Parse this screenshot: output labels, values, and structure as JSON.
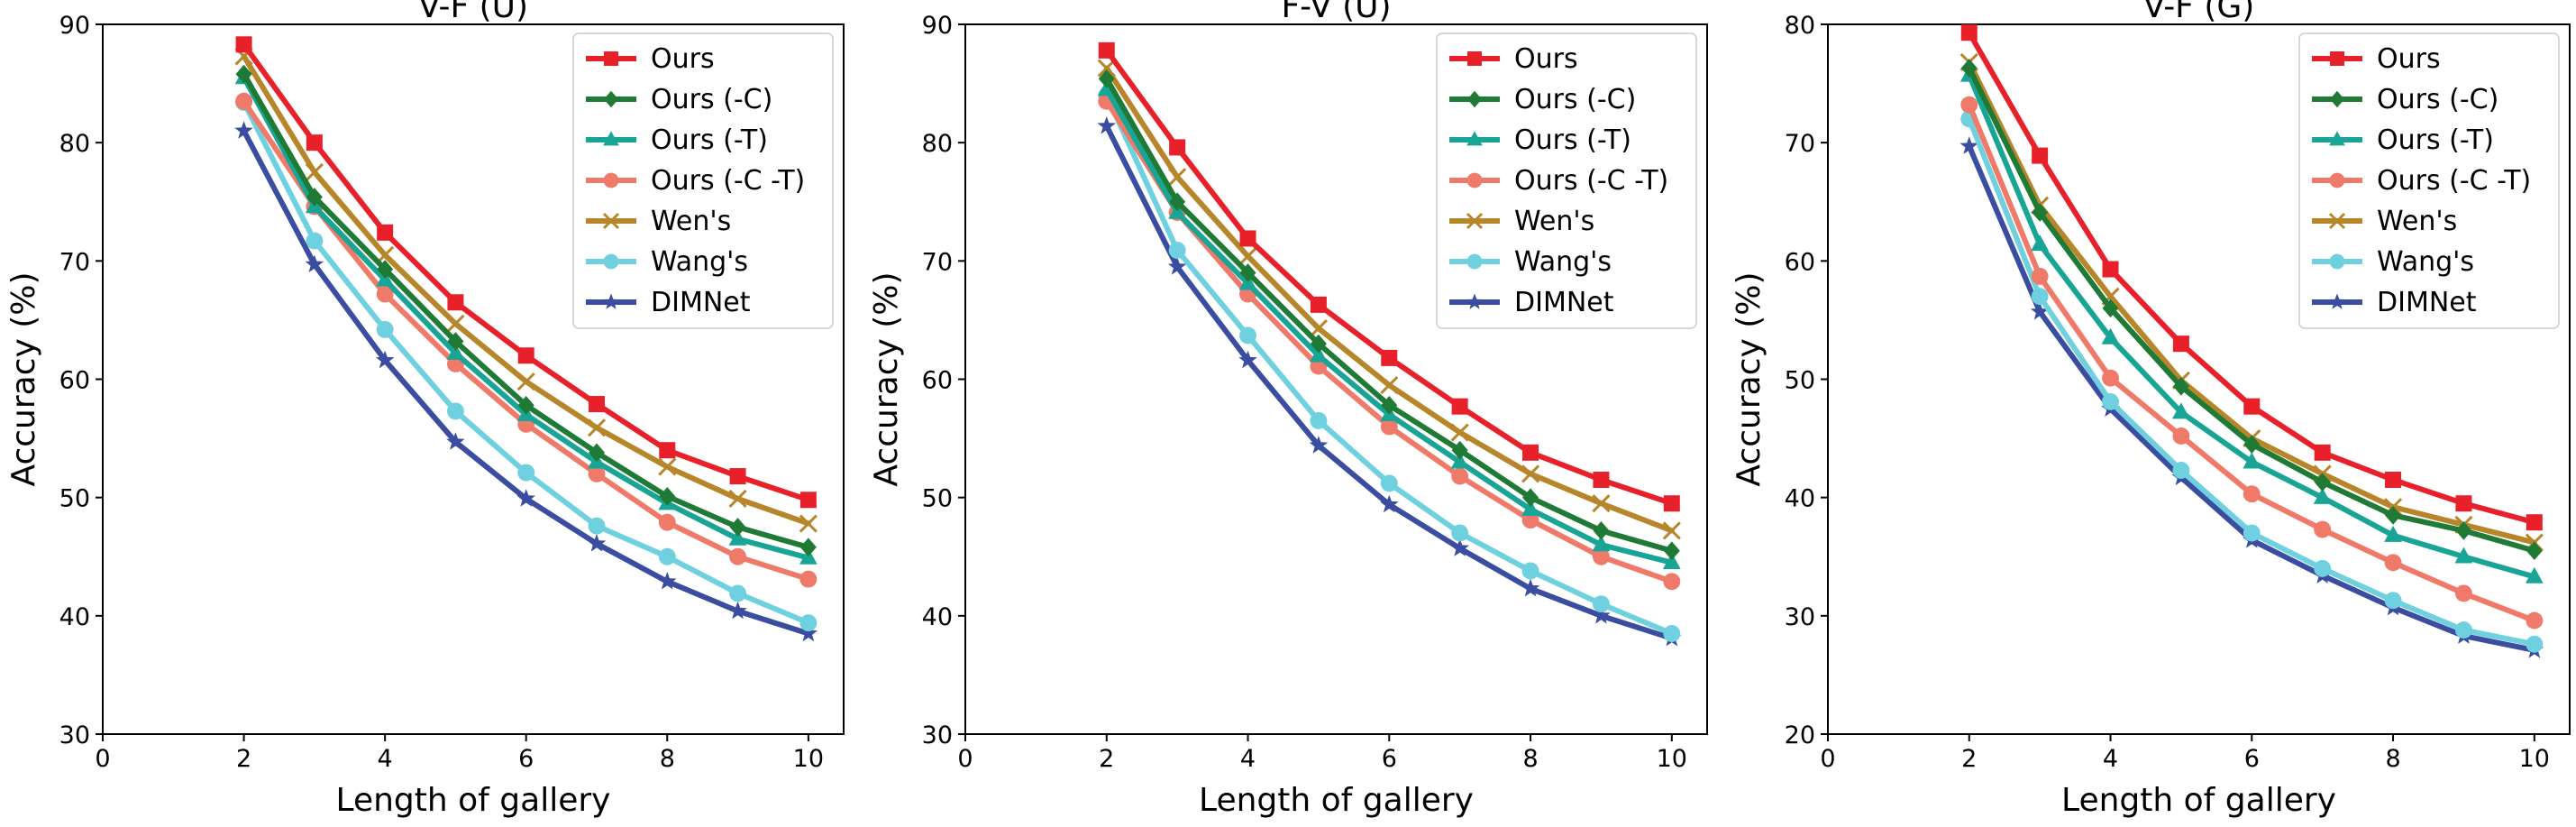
{
  "figure": "Accuracy vs. length of gallery",
  "chart_data": [
    {
      "type": "line",
      "title": "V-F (U)",
      "xlabel": "Length of gallery",
      "ylabel": "Accuracy (%)",
      "xlim": [
        0,
        10.5
      ],
      "ylim": [
        30,
        90
      ],
      "xticks": [
        0,
        2,
        4,
        6,
        8,
        10
      ],
      "yticks": [
        30,
        40,
        50,
        60,
        70,
        80,
        90
      ],
      "legend_position": "top-right",
      "x": [
        2,
        3,
        4,
        5,
        6,
        7,
        8,
        9,
        10
      ],
      "series": [
        {
          "name": "Ours",
          "color": "#e8202a",
          "marker": "square",
          "values": [
            88.3,
            80.0,
            72.4,
            66.5,
            62.0,
            57.9,
            54.0,
            51.8,
            49.8
          ]
        },
        {
          "name": "Ours (-C)",
          "color": "#1e7a35",
          "marker": "diamond",
          "values": [
            85.8,
            75.4,
            69.3,
            63.2,
            57.8,
            53.8,
            50.1,
            47.5,
            45.8
          ]
        },
        {
          "name": "Ours (-T)",
          "color": "#19a596",
          "marker": "triangle",
          "values": [
            85.5,
            74.6,
            68.4,
            62.2,
            57.0,
            53.0,
            49.5,
            46.5,
            44.9
          ]
        },
        {
          "name": "Ours (-C -T)",
          "color": "#ef7a6a",
          "marker": "circle",
          "values": [
            83.5,
            74.6,
            67.2,
            61.3,
            56.2,
            52.0,
            47.9,
            45.0,
            43.1
          ]
        },
        {
          "name": "Wen's",
          "color": "#b8862a",
          "marker": "x",
          "values": [
            87.3,
            77.5,
            70.5,
            64.7,
            59.8,
            55.9,
            52.6,
            49.9,
            47.8
          ]
        },
        {
          "name": "Wang's",
          "color": "#6fd0e0",
          "marker": "circle",
          "values": [
            83.4,
            71.7,
            64.2,
            57.3,
            52.1,
            47.6,
            45.0,
            41.9,
            39.4
          ]
        },
        {
          "name": "DIMNet",
          "color": "#3a4da0",
          "marker": "star",
          "values": [
            81.0,
            69.7,
            61.6,
            54.7,
            49.9,
            46.1,
            42.9,
            40.4,
            38.5
          ]
        }
      ]
    },
    {
      "type": "line",
      "title": "F-V (U)",
      "xlabel": "Length of gallery",
      "ylabel": "Accuracy (%)",
      "xlim": [
        0,
        10.5
      ],
      "ylim": [
        30,
        90
      ],
      "xticks": [
        0,
        2,
        4,
        6,
        8,
        10
      ],
      "yticks": [
        30,
        40,
        50,
        60,
        70,
        80,
        90
      ],
      "legend_position": "top-right",
      "x": [
        2,
        3,
        4,
        5,
        6,
        7,
        8,
        9,
        10
      ],
      "series": [
        {
          "name": "Ours",
          "color": "#e8202a",
          "marker": "square",
          "values": [
            87.8,
            79.6,
            71.9,
            66.3,
            61.8,
            57.7,
            53.8,
            51.5,
            49.5
          ]
        },
        {
          "name": "Ours (-C)",
          "color": "#1e7a35",
          "marker": "diamond",
          "values": [
            85.4,
            75.0,
            69.0,
            63.0,
            57.8,
            54.0,
            50.0,
            47.2,
            45.5
          ]
        },
        {
          "name": "Ours (-T)",
          "color": "#19a596",
          "marker": "triangle",
          "values": [
            84.5,
            74.1,
            68.1,
            62.0,
            57.0,
            53.0,
            49.0,
            46.0,
            44.5
          ]
        },
        {
          "name": "Ours (-C -T)",
          "color": "#ef7a6a",
          "marker": "circle",
          "values": [
            83.5,
            74.1,
            67.2,
            61.1,
            56.0,
            51.8,
            48.1,
            45.0,
            42.9
          ]
        },
        {
          "name": "Wen's",
          "color": "#b8862a",
          "marker": "x",
          "values": [
            86.3,
            77.1,
            70.4,
            64.3,
            59.5,
            55.5,
            52.0,
            49.5,
            47.2
          ]
        },
        {
          "name": "Wang's",
          "color": "#6fd0e0",
          "marker": "circle",
          "values": [
            84.0,
            70.9,
            63.7,
            56.5,
            51.2,
            47.0,
            43.8,
            41.0,
            38.5
          ]
        },
        {
          "name": "DIMNet",
          "color": "#3a4da0",
          "marker": "star",
          "values": [
            81.4,
            69.5,
            61.6,
            54.4,
            49.4,
            45.7,
            42.3,
            40.0,
            38.1
          ]
        }
      ]
    },
    {
      "type": "line",
      "title": "V-F (G)",
      "xlabel": "Length of gallery",
      "ylabel": "Accuracy (%)",
      "xlim": [
        0,
        10.5
      ],
      "ylim": [
        20,
        80
      ],
      "xticks": [
        0,
        2,
        4,
        6,
        8,
        10
      ],
      "yticks": [
        20,
        30,
        40,
        50,
        60,
        70,
        80
      ],
      "legend_position": "top-right",
      "x": [
        2,
        3,
        4,
        5,
        6,
        7,
        8,
        9,
        10
      ],
      "series": [
        {
          "name": "Ours",
          "color": "#e8202a",
          "marker": "square",
          "values": [
            79.3,
            68.9,
            59.3,
            53.0,
            47.7,
            43.8,
            41.5,
            39.5,
            37.9
          ]
        },
        {
          "name": "Ours (-C)",
          "color": "#1e7a35",
          "marker": "diamond",
          "values": [
            76.3,
            64.1,
            56.0,
            49.4,
            44.5,
            41.3,
            38.5,
            37.2,
            35.5
          ]
        },
        {
          "name": "Ours (-T)",
          "color": "#19a596",
          "marker": "triangle",
          "values": [
            75.7,
            61.4,
            53.5,
            47.2,
            43.0,
            40.0,
            36.8,
            35.0,
            33.3
          ]
        },
        {
          "name": "Ours (-C -T)",
          "color": "#ef7a6a",
          "marker": "circle",
          "values": [
            73.2,
            58.7,
            50.1,
            45.2,
            40.3,
            37.3,
            34.5,
            31.9,
            29.6
          ]
        },
        {
          "name": "Wen's",
          "color": "#b8862a",
          "marker": "x",
          "values": [
            76.8,
            64.7,
            57.0,
            49.9,
            45.0,
            42.0,
            39.2,
            37.7,
            36.2
          ]
        },
        {
          "name": "Wang's",
          "color": "#6fd0e0",
          "marker": "circle",
          "values": [
            72.0,
            57.0,
            48.1,
            42.3,
            37.0,
            34.0,
            31.3,
            28.8,
            27.6
          ]
        },
        {
          "name": "DIMNet",
          "color": "#3a4da0",
          "marker": "star",
          "values": [
            69.7,
            55.7,
            47.5,
            41.7,
            36.4,
            33.4,
            30.7,
            28.3,
            27.1
          ]
        }
      ]
    }
  ]
}
